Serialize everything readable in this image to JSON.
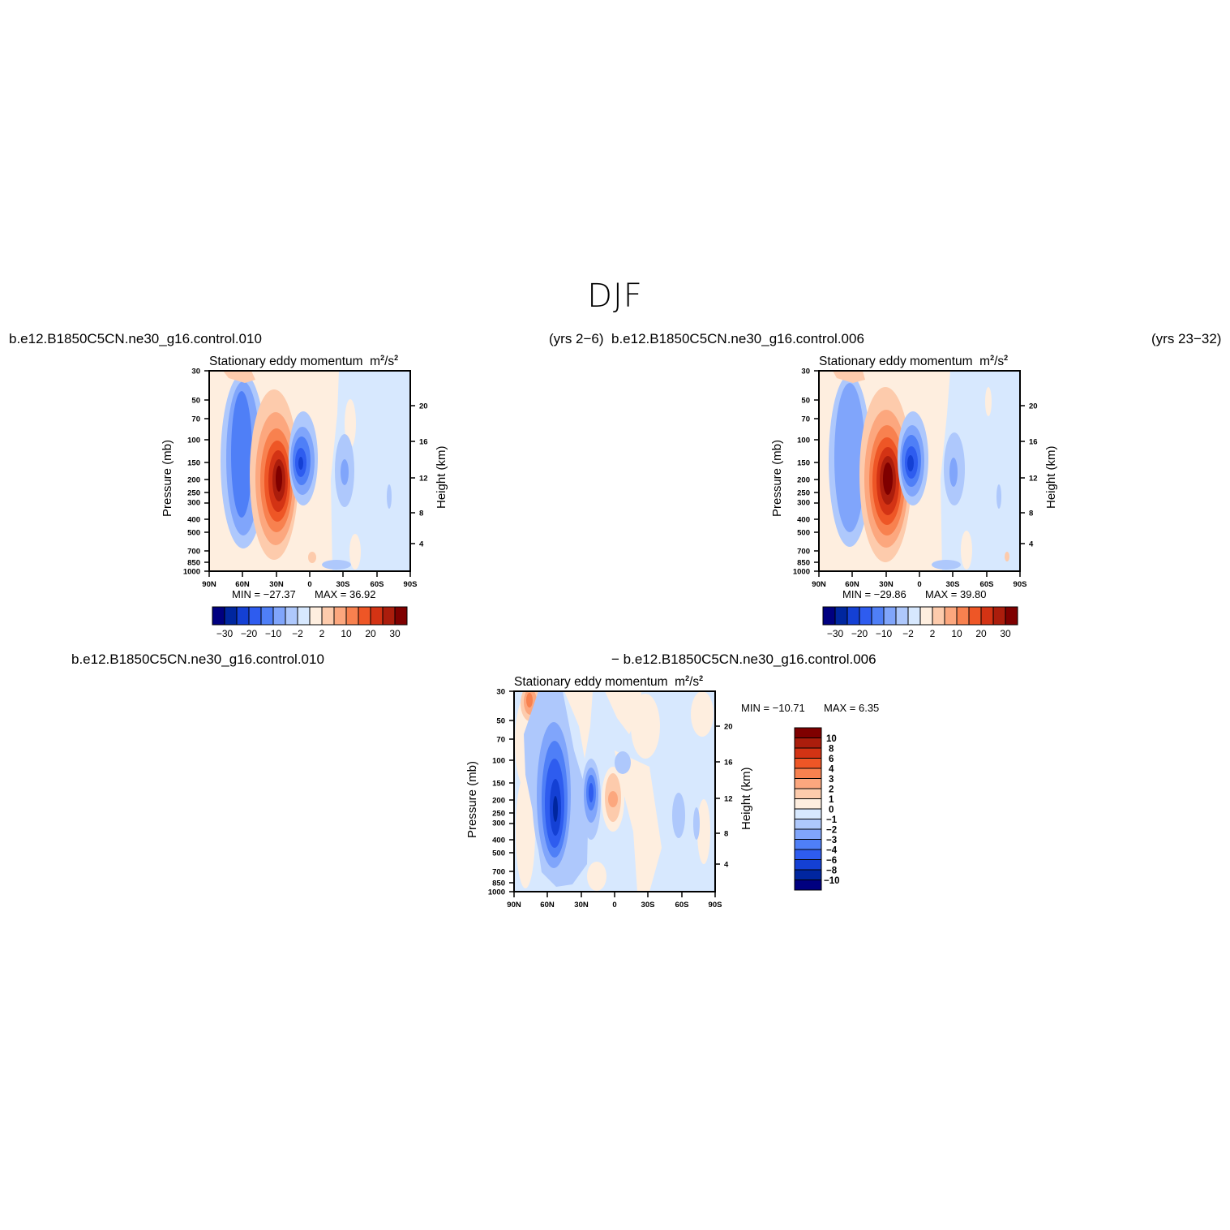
{
  "figure": {
    "season": "DJF",
    "top_left_case": "b.e12.B1850C5CN.ne30_g16.control.010",
    "top_left_years": "(yrs 2−6)",
    "top_right_case": "b.e12.B1850C5CN.ne30_g16.control.006",
    "top_right_years": "(yrs 23−32)",
    "diff_case_a": "b.e12.B1850C5CN.ne30_g16.control.010",
    "diff_case_b": "− b.e12.B1850C5CN.ne30_g16.control.006",
    "plot_title": "Stationary eddy momentum",
    "units": "m",
    "units_sup": "2",
    "units_mid": "/s",
    "units_sup2": "2",
    "ylabel_left": "Pressure (mb)",
    "ylabel_right": "Height (km)"
  },
  "panels": {
    "p1": {
      "min_label": "MIN = −27.37",
      "max_label": "MAX =  36.92"
    },
    "p2": {
      "min_label": "MIN = −29.86",
      "max_label": "MAX =  39.80"
    },
    "p3": {
      "min_label": "MIN = −10.71",
      "max_label": "MAX =    6.35"
    }
  },
  "colors": {
    "full_levels": [
      "#000080",
      "#00269f",
      "#1440d4",
      "#2e5cef",
      "#4f7ff7",
      "#80a5fb",
      "#aec8fc",
      "#d7e8fe",
      "#feeedf",
      "#fdcbac",
      "#fca77e",
      "#f8814f",
      "#ee5626",
      "#d33314",
      "#ab1d0c",
      "#7f0000"
    ],
    "diff_levels": [
      "#000080",
      "#00269f",
      "#1440d4",
      "#2e5cef",
      "#4f7ff7",
      "#80a5fb",
      "#aec8fc",
      "#d7e8fe",
      "#feeedf",
      "#fdcbac",
      "#fca77e",
      "#f8814f",
      "#ee5626",
      "#d33314",
      "#ab1d0c",
      "#7f0000"
    ]
  },
  "chart_data": [
    {
      "type": "heatmap",
      "title": "Stationary eddy momentum",
      "units": "m2/s2",
      "case": "b.e12.B1850C5CN.ne30_g16.control.010",
      "xlabel": "",
      "ylabel": "Pressure (mb)",
      "y2label": "Height (km)",
      "x_ticks": [
        "90N",
        "60N",
        "30N",
        "0",
        "30S",
        "60S",
        "90S"
      ],
      "y_ticks": [
        30,
        50,
        70,
        100,
        150,
        200,
        250,
        300,
        400,
        500,
        700,
        850,
        1000
      ],
      "y2_ticks": [
        20,
        16,
        12,
        8,
        4
      ],
      "colorbar_labels": [
        "−30",
        "−20",
        "−10",
        "−2",
        "2",
        "10",
        "20",
        "30"
      ],
      "min": -27.37,
      "max": 36.92,
      "features": [
        {
          "lat": 60,
          "p": 150,
          "value": -20
        },
        {
          "lat": 30,
          "p": 200,
          "value": 36.92
        },
        {
          "lat": 8,
          "p": 150,
          "value": -27.37
        }
      ]
    },
    {
      "type": "heatmap",
      "title": "Stationary eddy momentum",
      "units": "m2/s2",
      "case": "b.e12.B1850C5CN.ne30_g16.control.006",
      "xlabel": "",
      "ylabel": "Pressure (mb)",
      "y2label": "Height (km)",
      "x_ticks": [
        "90N",
        "60N",
        "30N",
        "0",
        "30S",
        "60S",
        "90S"
      ],
      "y_ticks": [
        30,
        50,
        70,
        100,
        150,
        200,
        250,
        300,
        400,
        500,
        700,
        850,
        1000
      ],
      "y2_ticks": [
        20,
        16,
        12,
        8,
        4
      ],
      "colorbar_labels": [
        "−30",
        "−20",
        "−10",
        "−2",
        "2",
        "10",
        "20",
        "30"
      ],
      "min": -29.86,
      "max": 39.8,
      "features": [
        {
          "lat": 60,
          "p": 150,
          "value": -15
        },
        {
          "lat": 30,
          "p": 200,
          "value": 39.8
        },
        {
          "lat": 8,
          "p": 150,
          "value": -29.86
        }
      ]
    },
    {
      "type": "heatmap",
      "title": "Stationary eddy momentum",
      "units": "m2/s2",
      "case": "b.e12.B1850C5CN.ne30_g16.control.010 − b.e12.B1850C5CN.ne30_g16.control.006",
      "xlabel": "",
      "ylabel": "Pressure (mb)",
      "y2label": "Height (km)",
      "x_ticks": [
        "90N",
        "60N",
        "30N",
        "0",
        "30S",
        "60S",
        "90S"
      ],
      "y_ticks": [
        30,
        50,
        70,
        100,
        150,
        200,
        250,
        300,
        400,
        500,
        700,
        850,
        1000
      ],
      "y2_ticks": [
        20,
        16,
        12,
        8,
        4
      ],
      "colorbar_labels": [
        "10",
        "8",
        "6",
        "4",
        "3",
        "2",
        "1",
        "0",
        "−1",
        "−2",
        "−3",
        "−4",
        "−6",
        "−8",
        "−10"
      ],
      "min": -10.71,
      "max": 6.35,
      "features": [
        {
          "lat": 55,
          "p": 250,
          "value": -10.71
        },
        {
          "lat": 20,
          "p": 200,
          "value": -6
        },
        {
          "lat": 0,
          "p": 200,
          "value": 6.35
        },
        {
          "lat": 75,
          "p": 30,
          "value": 4
        }
      ]
    }
  ]
}
